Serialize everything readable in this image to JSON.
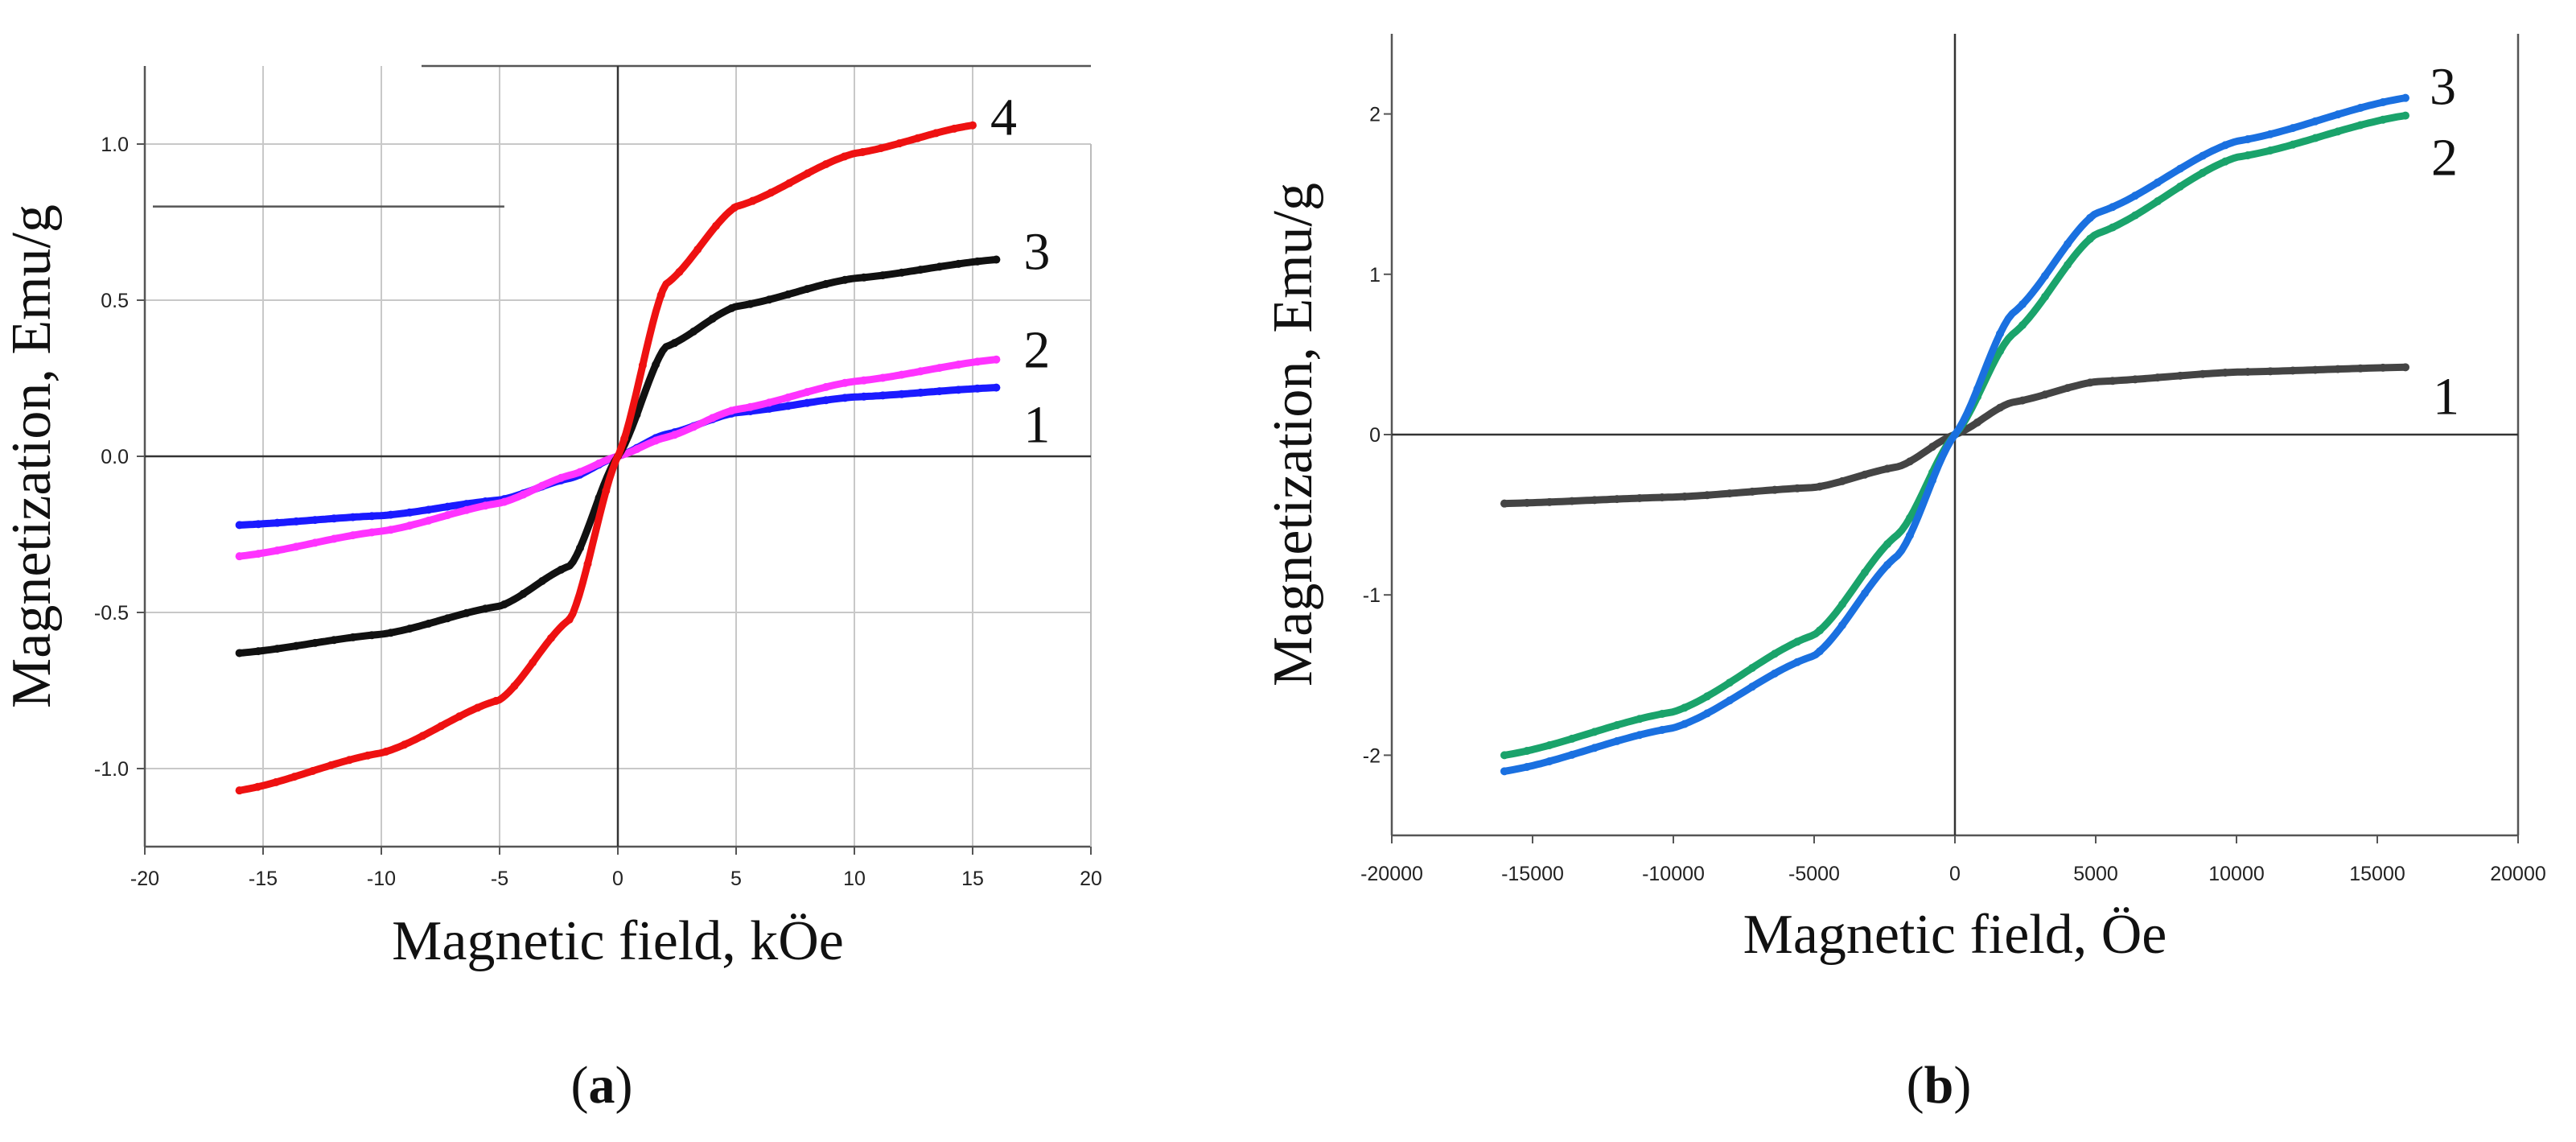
{
  "chart_data": [
    {
      "id": "a",
      "type": "line",
      "caption_letter": "a",
      "xlabel": "Magnetic field, kÖe",
      "ylabel": "Magnetization, Emu/g",
      "xlim": [
        -20,
        20
      ],
      "ylim": [
        -1.25,
        1.25
      ],
      "xticks": [
        -20,
        -15,
        -10,
        -5,
        0,
        5,
        10,
        15,
        20
      ],
      "xtick_labels": [
        "-20",
        "-15",
        "-10",
        "-5",
        "0",
        "5",
        "10",
        "15",
        "20"
      ],
      "yticks": [
        -1.0,
        -0.5,
        0.0,
        0.5,
        1.0
      ],
      "ytick_labels": [
        "-1.0",
        "-0.5",
        "0.0",
        "0.5",
        "1.0"
      ],
      "grid": true,
      "series": [
        {
          "name": "1",
          "label": "1",
          "color": "#1a1aff",
          "x_range": [
            -16,
            16
          ],
          "scale": 6,
          "values_at_ends": [
            -0.22,
            0.22
          ],
          "points_at_x": {
            "x": [
              -16,
              -10,
              -5,
              -2,
              0,
              2,
              5,
              10,
              16
            ],
            "y": [
              -0.22,
              -0.19,
              -0.14,
              -0.07,
              0.0,
              0.07,
              0.14,
              0.19,
              0.22
            ]
          }
        },
        {
          "name": "2",
          "label": "2",
          "color": "#ff33ff",
          "x_range": [
            -16,
            16
          ],
          "scale": 10,
          "values_at_ends": [
            -0.32,
            0.31
          ],
          "points_at_x": {
            "x": [
              -16,
              -10,
              -5,
              -2,
              0,
              2,
              5,
              10,
              16
            ],
            "y": [
              -0.32,
              -0.24,
              -0.15,
              -0.06,
              0.0,
              0.06,
              0.15,
              0.24,
              0.31
            ]
          }
        },
        {
          "name": "3",
          "label": "3",
          "color": "#111111",
          "x_range": [
            -16,
            16
          ],
          "scale": 1.4,
          "values_at_ends": [
            -0.63,
            0.63
          ],
          "points_at_x": {
            "x": [
              -16,
              -10,
              -5,
              -2,
              0,
              2,
              5,
              10,
              16
            ],
            "y": [
              -0.63,
              -0.57,
              -0.48,
              -0.35,
              0.0,
              0.35,
              0.48,
              0.57,
              0.63
            ]
          }
        },
        {
          "name": "4",
          "label": "4",
          "color": "#ee1111",
          "x_range": [
            -16,
            15
          ],
          "scale": 2.2,
          "values_at_ends": [
            -1.07,
            1.06
          ],
          "points_at_x": {
            "x": [
              -16,
              -10,
              -5,
              -2,
              0,
              2,
              5,
              10,
              15
            ],
            "y": [
              -1.07,
              -0.95,
              -0.78,
              -0.52,
              0.0,
              0.55,
              0.8,
              0.97,
              1.06
            ]
          }
        }
      ]
    },
    {
      "id": "b",
      "type": "line",
      "caption_letter": "b",
      "xlabel": "Magnetic field, Öe",
      "ylabel": "Magnetization, Emu/g",
      "xlim": [
        -20000,
        20000
      ],
      "ylim": [
        -2.5,
        2.5
      ],
      "xticks": [
        -20000,
        -15000,
        -10000,
        -5000,
        0,
        5000,
        10000,
        15000,
        20000
      ],
      "xtick_labels": [
        "-20000",
        "-15000",
        "-10000",
        "-5000",
        "0",
        "5000",
        "10000",
        "15000",
        "20000"
      ],
      "yticks": [
        -2,
        -1,
        0,
        1,
        2
      ],
      "ytick_labels": [
        "-2",
        "-1",
        "0",
        "1",
        "2"
      ],
      "grid": false,
      "series": [
        {
          "name": "1",
          "label": "1",
          "color": "#444444",
          "x_range": [
            -16000,
            16000
          ],
          "scale": 2500,
          "values_at_ends": [
            -0.43,
            0.42
          ],
          "points_at_x": {
            "x": [
              -16000,
              -10000,
              -5000,
              -2000,
              0,
              2000,
              5000,
              10000,
              16000
            ],
            "y": [
              -0.43,
              -0.39,
              -0.33,
              -0.2,
              0.0,
              0.2,
              0.33,
              0.39,
              0.42
            ]
          }
        },
        {
          "name": "2",
          "label": "2",
          "color": "#1aa36b",
          "x_range": [
            -16000,
            16000
          ],
          "scale": 4200,
          "values_at_ends": [
            -2.0,
            1.99
          ],
          "points_at_x": {
            "x": [
              -16000,
              -10000,
              -5000,
              -2000,
              0,
              2000,
              5000,
              10000,
              16000
            ],
            "y": [
              -2.0,
              -1.73,
              -1.25,
              -0.62,
              0.0,
              0.62,
              1.25,
              1.73,
              1.99
            ]
          }
        },
        {
          "name": "3",
          "label": "3",
          "color": "#1a70e0",
          "x_range": [
            -16000,
            16000
          ],
          "scale": 3600,
          "values_at_ends": [
            -2.1,
            2.1
          ],
          "points_at_x": {
            "x": [
              -16000,
              -10000,
              -5000,
              -2000,
              0,
              2000,
              5000,
              10000,
              16000
            ],
            "y": [
              -2.1,
              -1.83,
              -1.38,
              -0.75,
              0.0,
              0.75,
              1.38,
              1.83,
              2.1
            ]
          }
        }
      ]
    }
  ]
}
